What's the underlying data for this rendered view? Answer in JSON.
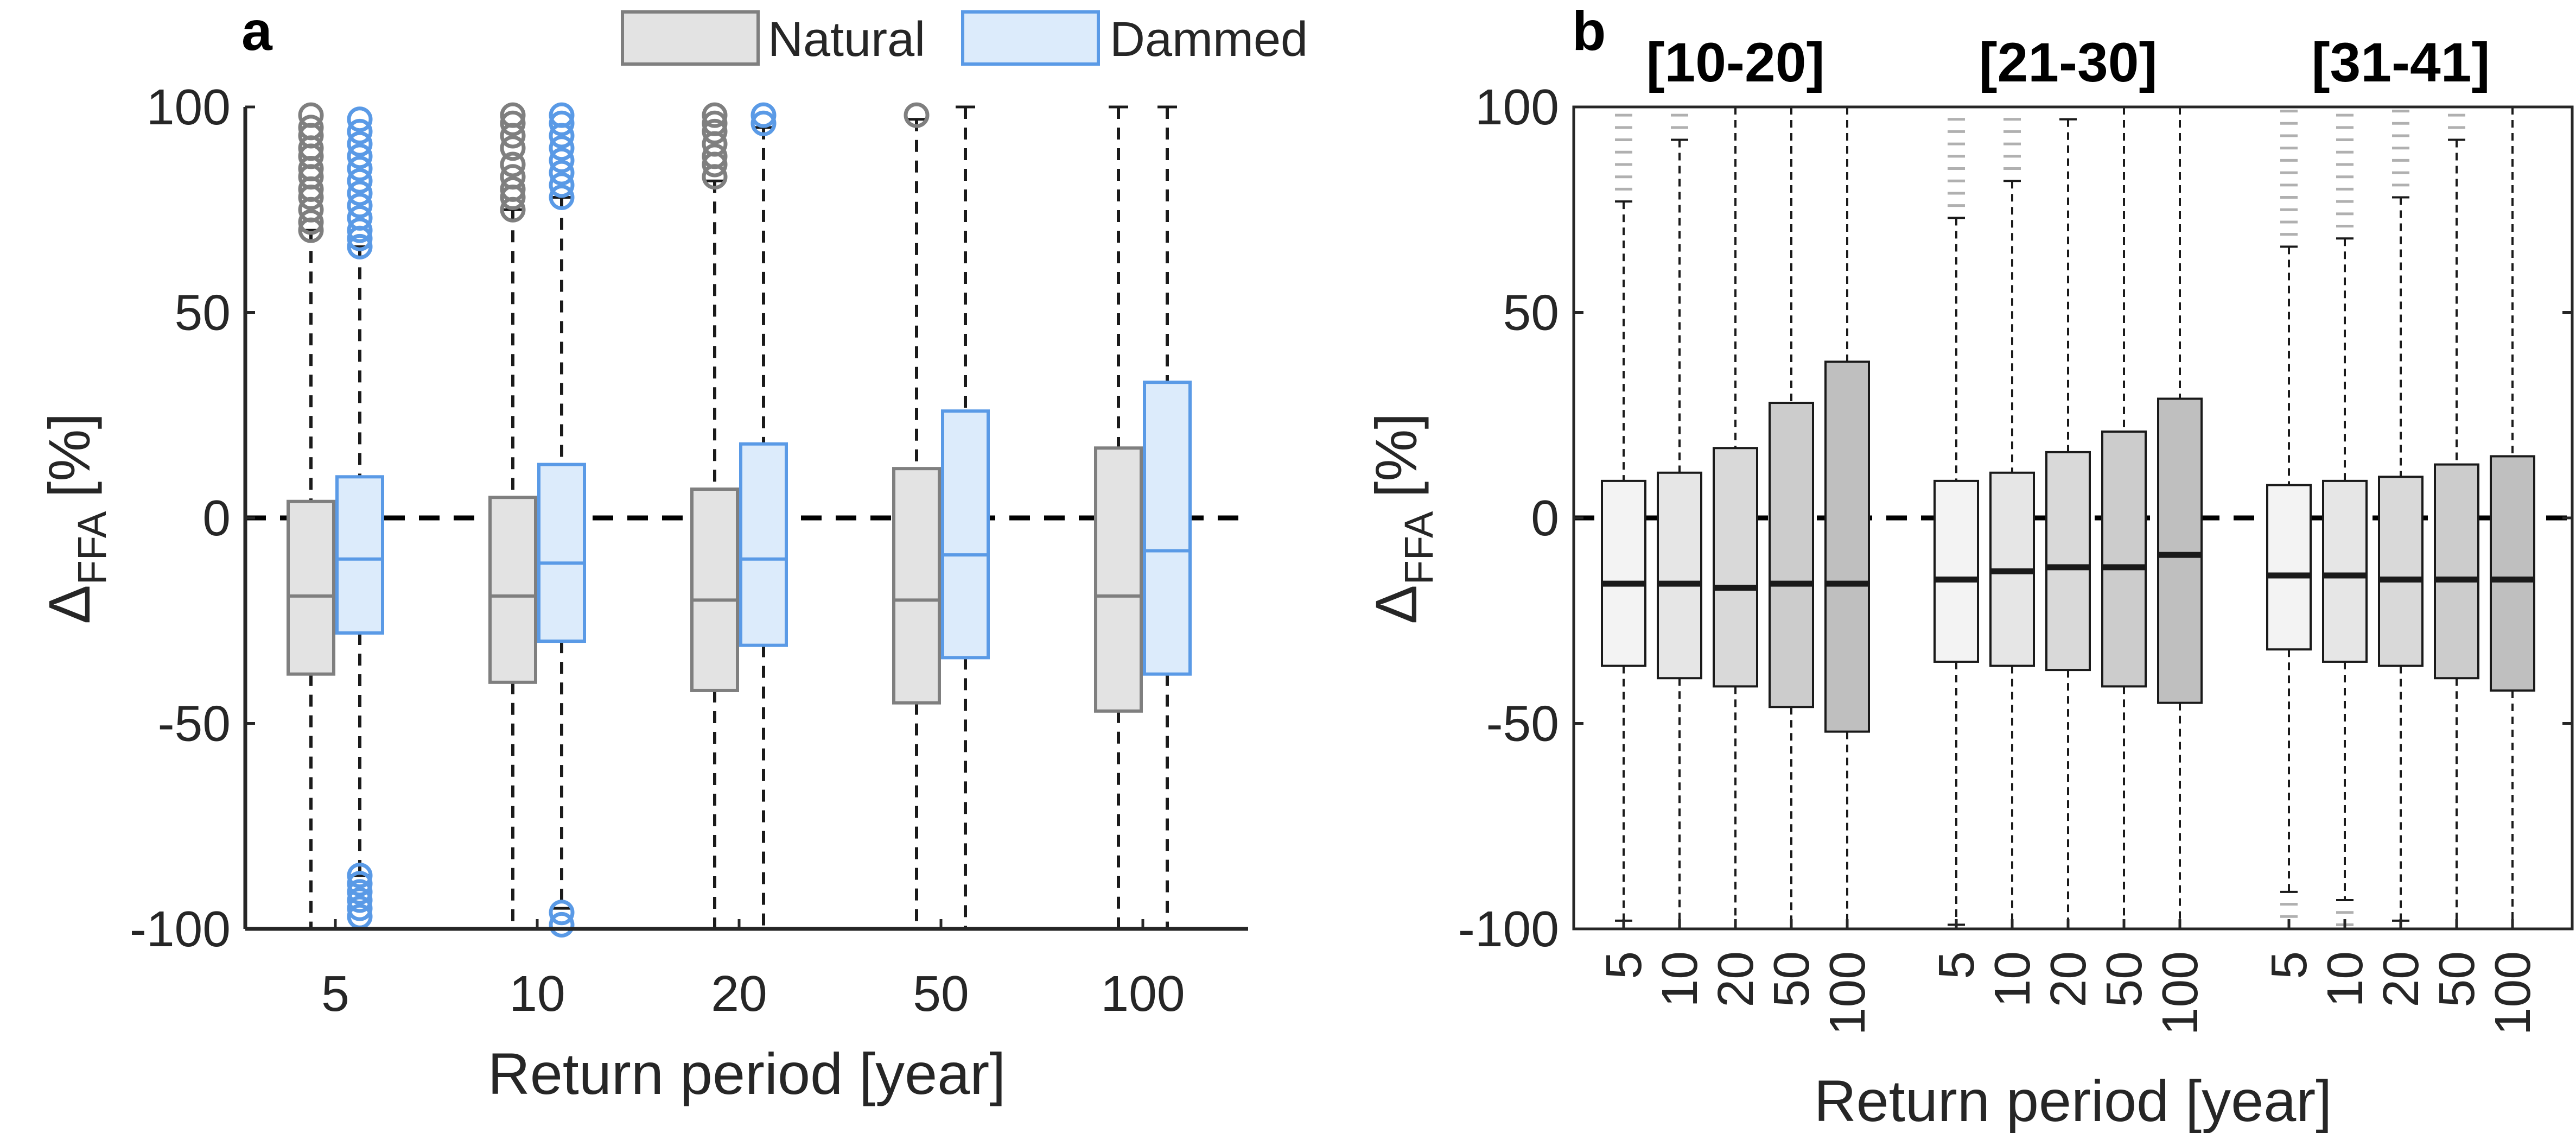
{
  "panel_a": {
    "letter": "a",
    "legend": [
      {
        "label": "Natural",
        "edge": "#7f7f7f",
        "fill": "#e3e3e3"
      },
      {
        "label": "Dammed",
        "edge": "#5a9ae6",
        "fill": "#dcebfb"
      }
    ],
    "xlabel": "Return period [year]",
    "ylabel_main": "Δ",
    "ylabel_sub": "FFA",
    "ylabel_unit": "[%]",
    "yticks": [
      "100",
      "50",
      "0",
      "-50",
      "-100"
    ],
    "xticks": [
      "5",
      "10",
      "20",
      "50",
      "100"
    ]
  },
  "panel_b": {
    "letter": "b",
    "groups": [
      "[10-20]",
      "[21-30]",
      "[31-41]"
    ],
    "xlabel": "Return period [year]",
    "ylabel_main": "Δ",
    "ylabel_sub": "FFA",
    "ylabel_unit": "[%]",
    "yticks": [
      "100",
      "50",
      "0",
      "-50",
      "-100"
    ],
    "xticks": [
      "5",
      "10",
      "20",
      "50",
      "100"
    ]
  },
  "chart_data": [
    {
      "type": "box",
      "panel": "a",
      "categories": [
        "5",
        "10",
        "20",
        "50",
        "100"
      ],
      "xlabel": "Return period [year]",
      "ylabel": "Δ FFA [%]",
      "ylim": [
        -100,
        100
      ],
      "reference_line": 0,
      "series": [
        {
          "name": "Natural",
          "color": "#7f7f7f",
          "fill": "#e3e3e3",
          "q1": [
            -38,
            -40,
            -42,
            -45,
            -47
          ],
          "median": [
            -19,
            -19,
            -20,
            -20,
            -19
          ],
          "q3": [
            4,
            5,
            7,
            12,
            17
          ],
          "whisker_low": [
            -100,
            -100,
            -100,
            -100,
            -100
          ],
          "whisker_high": [
            70,
            75,
            82,
            97,
            100
          ],
          "outliers_high": [
            [
              70,
              72,
              75,
              78,
              80,
              83,
              85,
              88,
              90,
              93,
              95,
              98
            ],
            [
              75,
              78,
              80,
              83,
              86,
              90,
              93,
              96,
              98
            ],
            [
              83,
              86,
              88,
              91,
              94,
              96,
              98
            ],
            [
              98
            ],
            []
          ],
          "outliers_low": [
            [],
            [],
            [],
            [],
            []
          ]
        },
        {
          "name": "Dammed",
          "color": "#5a9ae6",
          "fill": "#dcebfb",
          "q1": [
            -28,
            -30,
            -31,
            -34,
            -38
          ],
          "median": [
            -10,
            -11,
            -10,
            -9,
            -8
          ],
          "q3": [
            10,
            13,
            18,
            26,
            33
          ],
          "whisker_low": [
            -87,
            -95,
            -100,
            -100,
            -100
          ],
          "whisker_high": [
            66,
            78,
            95,
            100,
            100
          ],
          "outliers_high": [
            [
              66,
              68,
              70,
              73,
              76,
              79,
              82,
              85,
              88,
              91,
              94,
              97
            ],
            [
              78,
              81,
              84,
              87,
              90,
              93,
              96,
              98
            ],
            [
              96,
              98
            ],
            [],
            []
          ],
          "outliers_low": [
            [
              -87,
              -89,
              -91,
              -93,
              -95,
              -97
            ],
            [
              -96,
              -99
            ],
            [],
            [],
            []
          ]
        }
      ]
    },
    {
      "type": "box",
      "panel": "b",
      "groups": [
        "[10-20]",
        "[21-30]",
        "[31-41]"
      ],
      "categories": [
        "5",
        "10",
        "20",
        "50",
        "100"
      ],
      "xlabel": "Return period [year]",
      "ylabel": "Δ FFA [%]",
      "ylim": [
        -100,
        100
      ],
      "reference_line": 0,
      "fills": [
        "#f3f3f3",
        "#e6e6e6",
        "#d9d9d9",
        "#cccccc",
        "#bfbfbf"
      ],
      "boxes": [
        {
          "group": "[10-20]",
          "q1": [
            -36,
            -39,
            -41,
            -46,
            -52
          ],
          "median": [
            -16,
            -16,
            -17,
            -16,
            -16
          ],
          "q3": [
            9,
            11,
            17,
            28,
            38
          ],
          "whisker_low": [
            -98,
            -100,
            -100,
            -100,
            -100
          ],
          "whisker_high": [
            77,
            92,
            100,
            100,
            100
          ]
        },
        {
          "group": "[21-30]",
          "q1": [
            -35,
            -36,
            -37,
            -41,
            -45
          ],
          "median": [
            -15,
            -13,
            -12,
            -12,
            -9
          ],
          "q3": [
            9,
            11,
            16,
            21,
            29
          ],
          "whisker_low": [
            -99,
            -100,
            -100,
            -100,
            -100
          ],
          "whisker_high": [
            73,
            82,
            97,
            100,
            100
          ]
        },
        {
          "group": "[31-41]",
          "q1": [
            -32,
            -35,
            -36,
            -39,
            -42
          ],
          "median": [
            -14,
            -14,
            -15,
            -15,
            -15
          ],
          "q3": [
            8,
            9,
            10,
            13,
            15
          ],
          "whisker_low": [
            -91,
            -93,
            -98,
            -100,
            -100
          ],
          "whisker_high": [
            66,
            68,
            78,
            92,
            100
          ]
        }
      ]
    }
  ]
}
